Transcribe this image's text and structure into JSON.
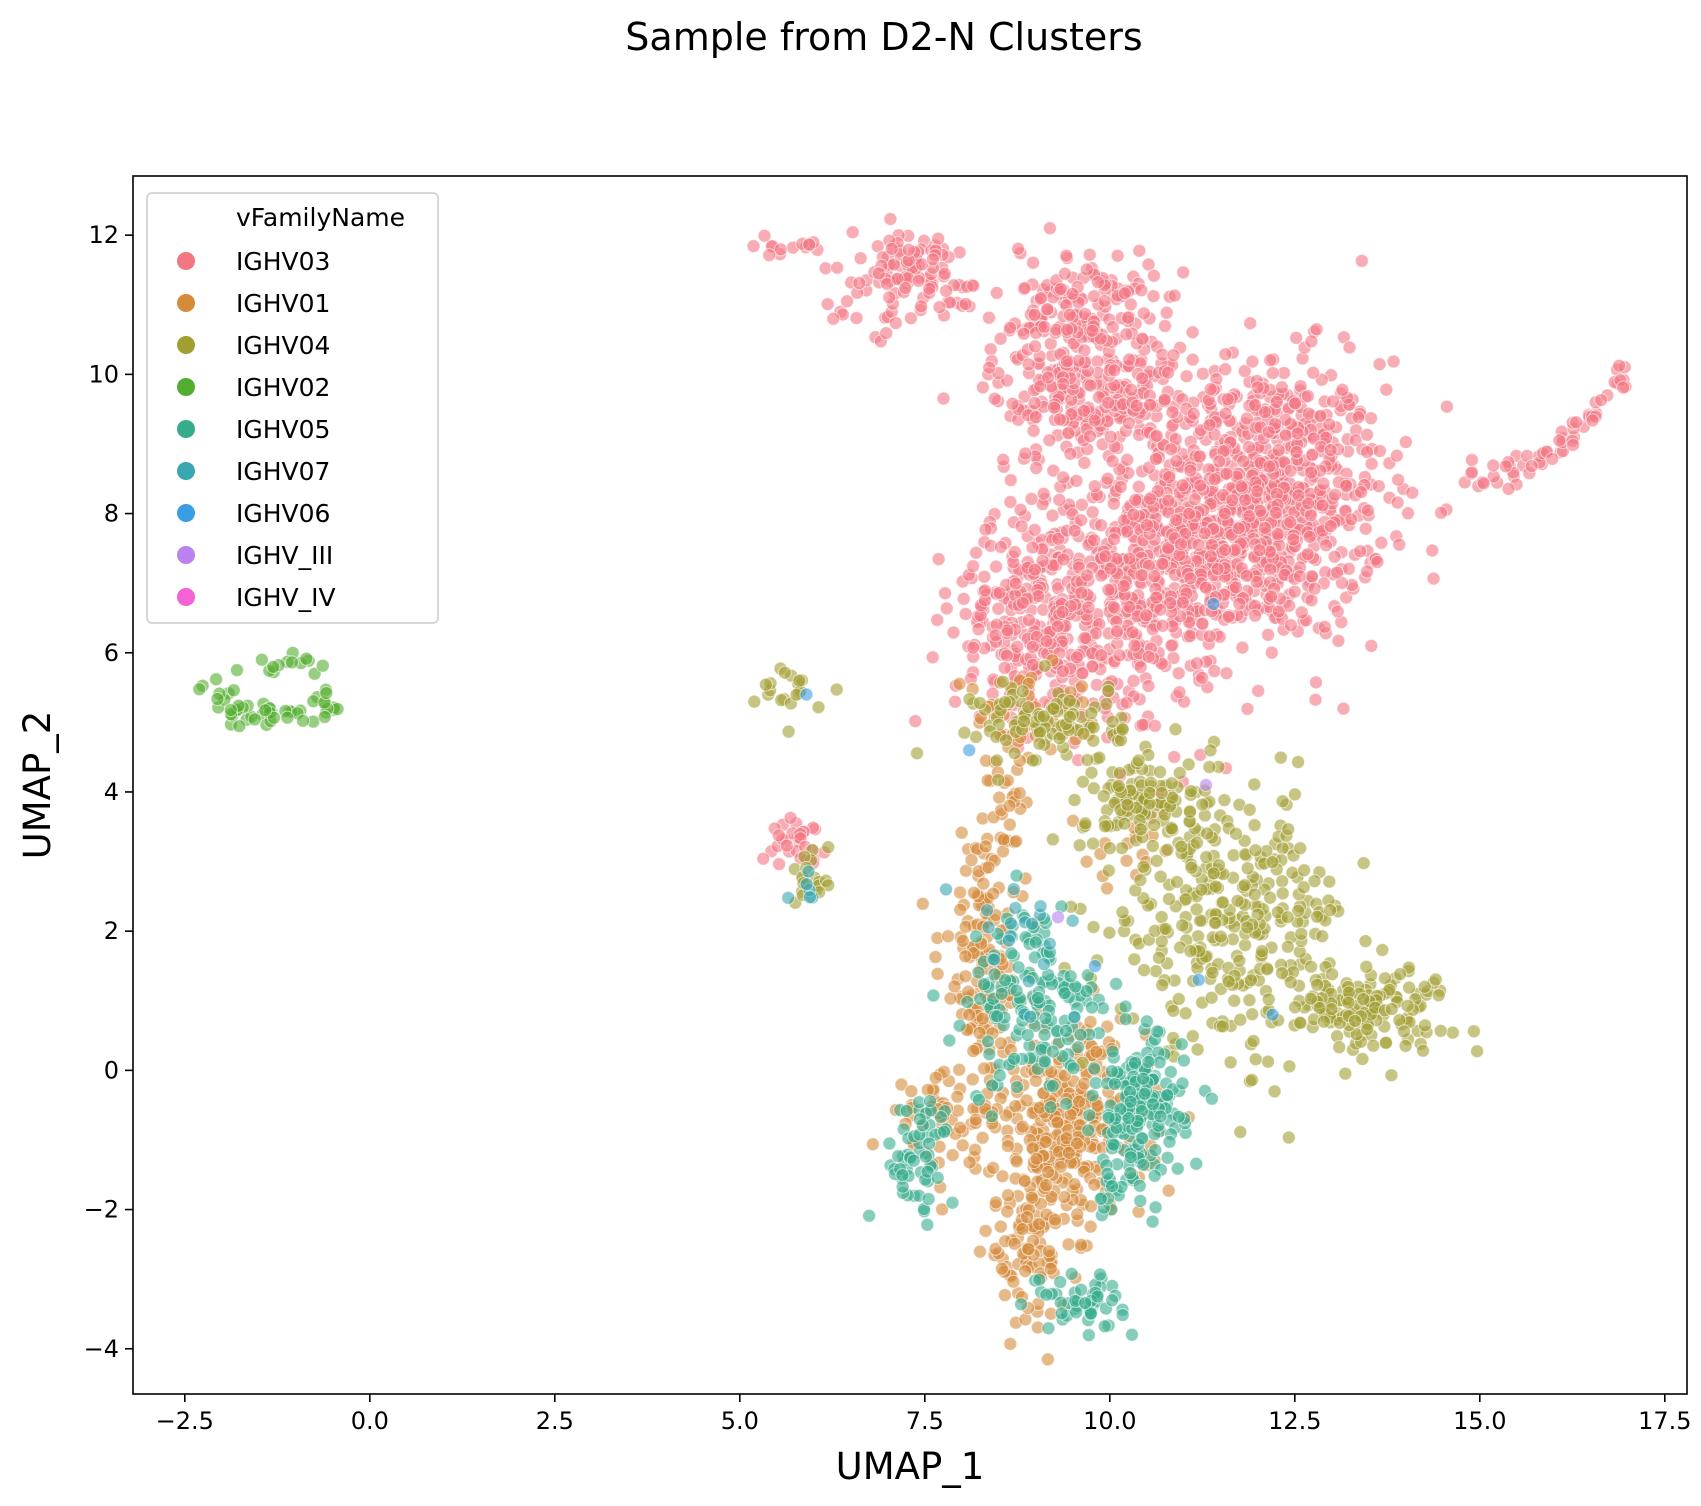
{
  "chart_data": {
    "type": "scatter",
    "title": "Sample from D2-N Clusters",
    "xlabel": "UMAP_1",
    "ylabel": "UMAP_2",
    "xlim": [
      -3.2,
      17.8
    ],
    "ylim": [
      -4.65,
      12.85
    ],
    "xticks": [
      -2.5,
      0.0,
      2.5,
      5.0,
      7.5,
      10.0,
      12.5,
      15.0,
      17.5
    ],
    "xtick_labels": [
      "−2.5",
      "0.0",
      "2.5",
      "5.0",
      "7.5",
      "10.0",
      "12.5",
      "15.0",
      "17.5"
    ],
    "yticks": [
      -4,
      -2,
      0,
      2,
      4,
      6,
      8,
      10,
      12
    ],
    "ytick_labels": [
      "−4",
      "−2",
      "0",
      "2",
      "4",
      "6",
      "8",
      "10",
      "12"
    ],
    "grid": false,
    "legend": {
      "title": "vFamilyName",
      "position": "top-left"
    },
    "series": [
      {
        "name": "IGHV03",
        "color": "#f37683",
        "clusters": [
          {
            "cx": 12.0,
            "cy": 8.2,
            "sx": 0.85,
            "sy": 1.0,
            "n": 900
          },
          {
            "cx": 10.5,
            "cy": 7.2,
            "sx": 0.9,
            "sy": 0.6,
            "n": 420
          },
          {
            "cx": 9.0,
            "cy": 6.4,
            "sx": 0.55,
            "sy": 0.75,
            "n": 260
          },
          {
            "cx": 9.7,
            "cy": 9.8,
            "sx": 0.65,
            "sy": 0.6,
            "n": 300
          },
          {
            "cx": 9.7,
            "cy": 11.0,
            "sx": 0.45,
            "sy": 0.4,
            "n": 120
          },
          {
            "cx": 7.3,
            "cy": 11.4,
            "sx": 0.6,
            "sy": 0.35,
            "n": 120
          },
          {
            "cx": 5.6,
            "cy": 11.85,
            "sx": 0.3,
            "sy": 0.08,
            "n": 14
          },
          {
            "cx": 5.8,
            "cy": 3.3,
            "sx": 0.18,
            "sy": 0.15,
            "n": 30
          },
          {
            "cx": 10.3,
            "cy": 5.7,
            "sx": 0.6,
            "sy": 0.6,
            "n": 80
          }
        ],
        "arc": {
          "x0": 14.9,
          "y0": 8.5,
          "x1": 17.0,
          "y1": 10.1,
          "n": 60
        }
      },
      {
        "name": "IGHV01",
        "color": "#d68b3b",
        "clusters": [
          {
            "cx": 9.4,
            "cy": -0.8,
            "sx": 0.55,
            "sy": 0.7,
            "n": 300
          },
          {
            "cx": 8.3,
            "cy": 1.6,
            "sx": 0.3,
            "sy": 1.0,
            "n": 150
          },
          {
            "cx": 8.9,
            "cy": -2.6,
            "sx": 0.3,
            "sy": 0.5,
            "n": 90
          },
          {
            "cx": 7.8,
            "cy": -0.7,
            "sx": 0.4,
            "sy": 0.35,
            "n": 60
          },
          {
            "cx": 8.6,
            "cy": 4.0,
            "sx": 0.12,
            "sy": 0.6,
            "n": 30
          },
          {
            "cx": 9.0,
            "cy": 5.0,
            "sx": 0.6,
            "sy": 0.3,
            "n": 40
          },
          {
            "cx": 10.3,
            "cy": 3.3,
            "sx": 0.3,
            "sy": 0.3,
            "n": 20
          }
        ]
      },
      {
        "name": "IGHV04",
        "color": "#a19e32",
        "clusters": [
          {
            "cx": 11.6,
            "cy": 2.2,
            "sx": 0.8,
            "sy": 0.9,
            "n": 320
          },
          {
            "cx": 13.4,
            "cy": 0.9,
            "sx": 0.6,
            "sy": 0.3,
            "n": 150
          },
          {
            "cx": 10.5,
            "cy": 3.8,
            "sx": 0.4,
            "sy": 0.35,
            "n": 110
          },
          {
            "cx": 9.2,
            "cy": 5.0,
            "sx": 0.5,
            "sy": 0.3,
            "n": 100
          },
          {
            "cx": 5.7,
            "cy": 5.4,
            "sx": 0.2,
            "sy": 0.2,
            "n": 20
          },
          {
            "cx": 5.95,
            "cy": 2.8,
            "sx": 0.12,
            "sy": 0.25,
            "n": 20
          }
        ]
      },
      {
        "name": "IGHV02",
        "color": "#53ad2e",
        "clusters": [
          {
            "cx": -1.3,
            "cy": 5.1,
            "sx": 0.45,
            "sy": 0.08,
            "n": 30
          },
          {
            "cx": -2.0,
            "cy": 5.35,
            "sx": 0.15,
            "sy": 0.15,
            "n": 12
          },
          {
            "cx": -0.6,
            "cy": 5.25,
            "sx": 0.15,
            "sy": 0.1,
            "n": 10
          },
          {
            "cx": -1.0,
            "cy": 5.85,
            "sx": 0.3,
            "sy": 0.08,
            "n": 14
          }
        ]
      },
      {
        "name": "IGHV05",
        "color": "#37ac8d",
        "clusters": [
          {
            "cx": 10.4,
            "cy": -0.6,
            "sx": 0.3,
            "sy": 0.55,
            "n": 180
          },
          {
            "cx": 9.0,
            "cy": 0.9,
            "sx": 0.45,
            "sy": 0.7,
            "n": 160
          },
          {
            "cx": 7.4,
            "cy": -1.2,
            "sx": 0.25,
            "sy": 0.45,
            "n": 60
          },
          {
            "cx": 9.6,
            "cy": -3.3,
            "sx": 0.3,
            "sy": 0.2,
            "n": 50
          },
          {
            "cx": 10.0,
            "cy": -1.6,
            "sx": 0.12,
            "sy": 0.3,
            "n": 16
          }
        ]
      },
      {
        "name": "IGHV07",
        "color": "#38a7b0",
        "clusters": [
          {
            "cx": 8.8,
            "cy": 1.8,
            "sx": 0.4,
            "sy": 0.5,
            "n": 20
          },
          {
            "cx": 5.85,
            "cy": 2.6,
            "sx": 0.1,
            "sy": 0.1,
            "n": 6
          }
        ]
      },
      {
        "name": "IGHV06",
        "color": "#3a9ee5",
        "points": [
          [
            9.8,
            1.5
          ],
          [
            11.2,
            1.3
          ],
          [
            12.2,
            0.8
          ],
          [
            5.9,
            5.4
          ],
          [
            8.1,
            4.6
          ],
          [
            11.4,
            6.7
          ]
        ]
      },
      {
        "name": "IGHV_III",
        "color": "#b982ee",
        "points": [
          [
            9.3,
            2.2
          ],
          [
            11.3,
            4.1
          ]
        ]
      },
      {
        "name": "IGHV_IV",
        "color": "#f462d6",
        "points": []
      }
    ]
  }
}
